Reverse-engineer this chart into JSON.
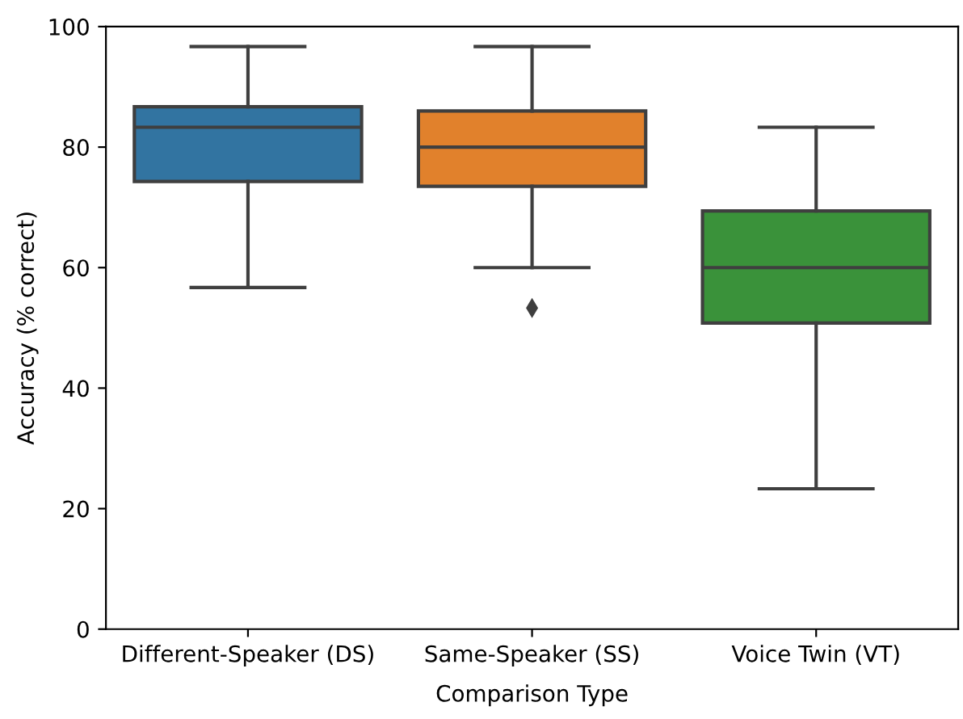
{
  "chart_data": {
    "type": "box",
    "xlabel": "Comparison Type",
    "ylabel": "Accuracy (% correct)",
    "categories": [
      "Different-Speaker (DS)",
      "Same-Speaker (SS)",
      "Voice Twin (VT)"
    ],
    "colors": [
      "#3274a1",
      "#e1812c",
      "#3a923a"
    ],
    "boxes": [
      {
        "low": 56.7,
        "q1": 74.3,
        "median": 83.3,
        "q3": 86.7,
        "high": 96.7
      },
      {
        "low": 60.0,
        "q1": 73.5,
        "median": 80.0,
        "q3": 86.0,
        "high": 96.7,
        "outliers": [
          53.3
        ]
      },
      {
        "low": 23.3,
        "q1": 50.8,
        "median": 60.0,
        "q3": 69.4,
        "high": 83.3
      }
    ],
    "ylim": [
      0,
      100
    ],
    "yticks": [
      0,
      20,
      40,
      60,
      80,
      100
    ],
    "grid": false
  }
}
